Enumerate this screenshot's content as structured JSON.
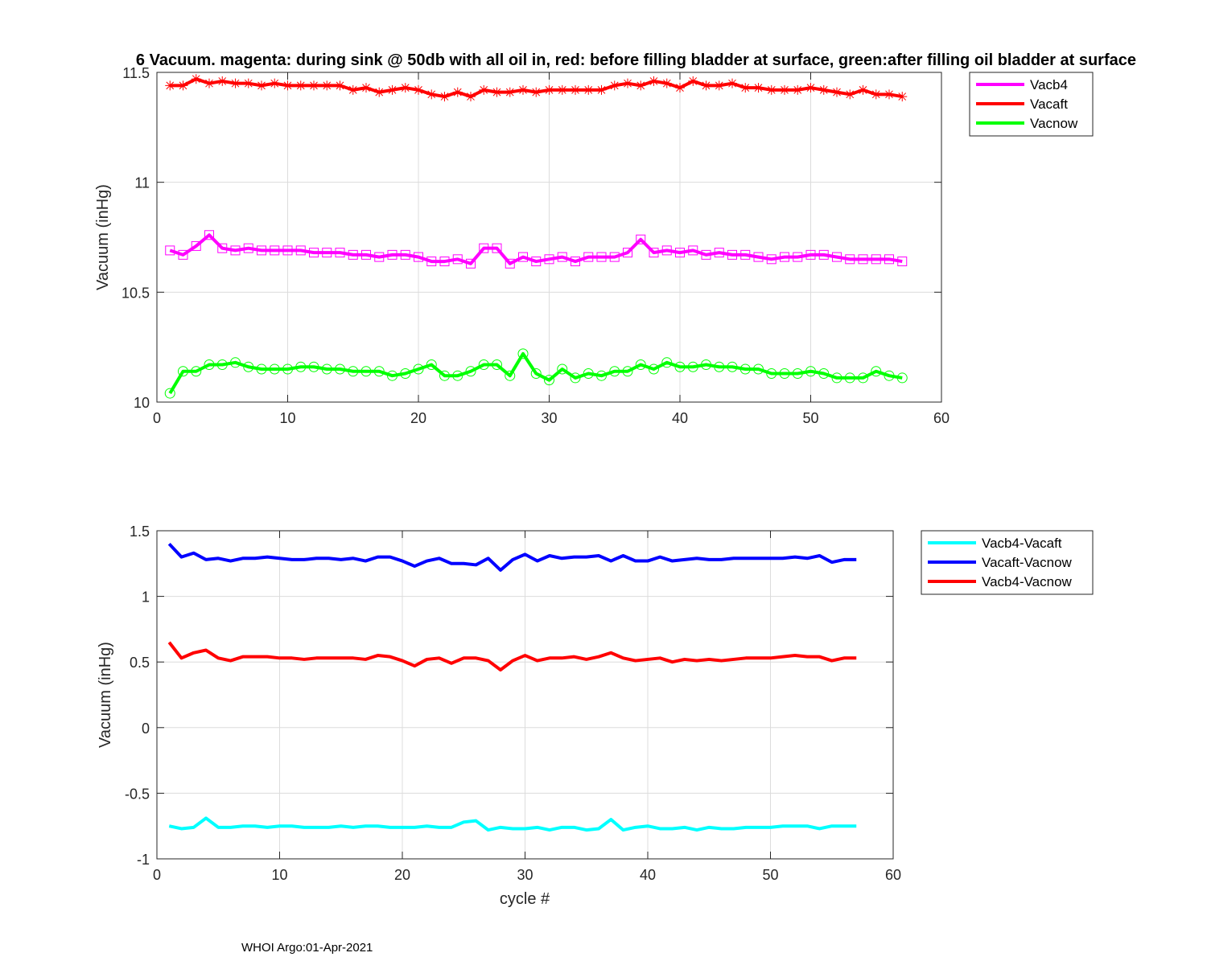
{
  "footer": "WHOI Argo:01-Apr-2021",
  "chart_data": [
    {
      "type": "line",
      "title": "6 Vacuum. magenta: during sink @ 50db with all oil in, red: before filling bladder at surface, green:after filling oil bladder at surface",
      "xlabel": "",
      "ylabel": "Vacuum (inHg)",
      "xlim": [
        0,
        60
      ],
      "ylim": [
        10,
        11.5
      ],
      "xticks": [
        "0",
        "10",
        "20",
        "30",
        "40",
        "50",
        "60"
      ],
      "yticks": [
        "10",
        "10.5",
        "11",
        "11.5"
      ],
      "grid": true,
      "legend_position": "outside-top-right",
      "x_start": 1,
      "series": [
        {
          "name": "Vacb4",
          "color": "#ff00ff",
          "marker": "square",
          "values": [
            10.69,
            10.67,
            10.71,
            10.76,
            10.7,
            10.69,
            10.7,
            10.69,
            10.69,
            10.69,
            10.69,
            10.68,
            10.68,
            10.68,
            10.67,
            10.67,
            10.66,
            10.67,
            10.67,
            10.66,
            10.64,
            10.64,
            10.65,
            10.63,
            10.7,
            10.7,
            10.63,
            10.66,
            10.64,
            10.65,
            10.66,
            10.64,
            10.66,
            10.66,
            10.66,
            10.68,
            10.74,
            10.68,
            10.69,
            10.68,
            10.69,
            10.67,
            10.68,
            10.67,
            10.67,
            10.66,
            10.65,
            10.66,
            10.66,
            10.67,
            10.67,
            10.66,
            10.65,
            10.65,
            10.65,
            10.65,
            10.64
          ]
        },
        {
          "name": "Vacaft",
          "color": "#ff0000",
          "marker": "asterisk",
          "values": [
            11.44,
            11.44,
            11.47,
            11.45,
            11.46,
            11.45,
            11.45,
            11.44,
            11.45,
            11.44,
            11.44,
            11.44,
            11.44,
            11.44,
            11.42,
            11.43,
            11.41,
            11.42,
            11.43,
            11.42,
            11.4,
            11.39,
            11.41,
            11.39,
            11.42,
            11.41,
            11.41,
            11.42,
            11.41,
            11.42,
            11.42,
            11.42,
            11.42,
            11.42,
            11.44,
            11.45,
            11.44,
            11.46,
            11.45,
            11.43,
            11.46,
            11.44,
            11.44,
            11.45,
            11.43,
            11.43,
            11.42,
            11.42,
            11.42,
            11.43,
            11.42,
            11.41,
            11.4,
            11.42,
            11.4,
            11.4,
            11.39
          ]
        },
        {
          "name": "Vacnow",
          "color": "#00ff00",
          "marker": "circle",
          "values": [
            10.04,
            10.14,
            10.14,
            10.17,
            10.17,
            10.18,
            10.16,
            10.15,
            10.15,
            10.15,
            10.16,
            10.16,
            10.15,
            10.15,
            10.14,
            10.14,
            10.14,
            10.12,
            10.13,
            10.15,
            10.17,
            10.12,
            10.12,
            10.14,
            10.17,
            10.17,
            10.12,
            10.22,
            10.13,
            10.1,
            10.15,
            10.11,
            10.13,
            10.12,
            10.14,
            10.14,
            10.17,
            10.15,
            10.18,
            10.16,
            10.16,
            10.17,
            10.16,
            10.16,
            10.15,
            10.15,
            10.13,
            10.13,
            10.13,
            10.14,
            10.13,
            10.11,
            10.11,
            10.11,
            10.14,
            10.12,
            10.11
          ]
        }
      ]
    },
    {
      "type": "line",
      "title": "",
      "xlabel": "cycle #",
      "ylabel": "Vacuum (inHg)",
      "xlim": [
        0,
        60
      ],
      "ylim": [
        -1,
        1.5
      ],
      "xticks": [
        "0",
        "10",
        "20",
        "30",
        "40",
        "50",
        "60"
      ],
      "yticks": [
        "-1",
        "-0.5",
        "0",
        "0.5",
        "1",
        "1.5"
      ],
      "grid": true,
      "legend_position": "outside-top-right",
      "x_start": 1,
      "series": [
        {
          "name": "Vacb4-Vacaft",
          "color": "#00ffff",
          "values": [
            -0.75,
            -0.77,
            -0.76,
            -0.69,
            -0.76,
            -0.76,
            -0.75,
            -0.75,
            -0.76,
            -0.75,
            -0.75,
            -0.76,
            -0.76,
            -0.76,
            -0.75,
            -0.76,
            -0.75,
            -0.75,
            -0.76,
            -0.76,
            -0.76,
            -0.75,
            -0.76,
            -0.76,
            -0.72,
            -0.71,
            -0.78,
            -0.76,
            -0.77,
            -0.77,
            -0.76,
            -0.78,
            -0.76,
            -0.76,
            -0.78,
            -0.77,
            -0.7,
            -0.78,
            -0.76,
            -0.75,
            -0.77,
            -0.77,
            -0.76,
            -0.78,
            -0.76,
            -0.77,
            -0.77,
            -0.76,
            -0.76,
            -0.76,
            -0.75,
            -0.75,
            -0.75,
            -0.77,
            -0.75,
            -0.75,
            -0.75
          ]
        },
        {
          "name": "Vacaft-Vacnow",
          "color": "#0000ff",
          "values": [
            1.4,
            1.3,
            1.33,
            1.28,
            1.29,
            1.27,
            1.29,
            1.29,
            1.3,
            1.29,
            1.28,
            1.28,
            1.29,
            1.29,
            1.28,
            1.29,
            1.27,
            1.3,
            1.3,
            1.27,
            1.23,
            1.27,
            1.29,
            1.25,
            1.25,
            1.24,
            1.29,
            1.2,
            1.28,
            1.32,
            1.27,
            1.31,
            1.29,
            1.3,
            1.3,
            1.31,
            1.27,
            1.31,
            1.27,
            1.27,
            1.3,
            1.27,
            1.28,
            1.29,
            1.28,
            1.28,
            1.29,
            1.29,
            1.29,
            1.29,
            1.29,
            1.3,
            1.29,
            1.31,
            1.26,
            1.28,
            1.28
          ]
        },
        {
          "name": "Vacb4-Vacnow",
          "color": "#ff0000",
          "values": [
            0.65,
            0.53,
            0.57,
            0.59,
            0.53,
            0.51,
            0.54,
            0.54,
            0.54,
            0.53,
            0.53,
            0.52,
            0.53,
            0.53,
            0.53,
            0.53,
            0.52,
            0.55,
            0.54,
            0.51,
            0.47,
            0.52,
            0.53,
            0.49,
            0.53,
            0.53,
            0.51,
            0.44,
            0.51,
            0.55,
            0.51,
            0.53,
            0.53,
            0.54,
            0.52,
            0.54,
            0.57,
            0.53,
            0.51,
            0.52,
            0.53,
            0.5,
            0.52,
            0.51,
            0.52,
            0.51,
            0.52,
            0.53,
            0.53,
            0.53,
            0.54,
            0.55,
            0.54,
            0.54,
            0.51,
            0.53,
            0.53
          ]
        }
      ]
    }
  ]
}
